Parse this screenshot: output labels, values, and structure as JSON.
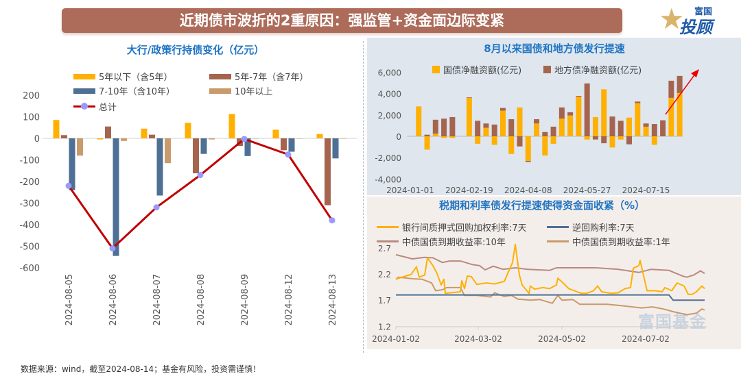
{
  "header": {
    "title": "近期债市波折的2重原因：强监管+资金面边际变紧",
    "logo_text": "富国星投顾",
    "logo_top": "富国",
    "logo_bottom": "投顾"
  },
  "watermark": "富国基金",
  "footer": "数据来源：wind，截至2024-08-14；基金有风险，投资需谨慎！",
  "colors": {
    "orange": "#ffb000",
    "brown": "#a5644e",
    "blue": "#4e7094",
    "tan": "#c89a6c",
    "total": "#c00000",
    "marker": "#9999ff",
    "pink": "#b88a80",
    "title": "#1f74c4"
  },
  "chart_data": [
    {
      "type": "bar",
      "title": "大行/政策行持债变化（亿元）",
      "categories": [
        "2024-08-05",
        "2024-08-06",
        "2024-08-07",
        "2024-08-08",
        "2024-08-09",
        "2024-08-12",
        "2024-08-13"
      ],
      "ylim": [
        -600,
        200
      ],
      "yticks": [
        "200",
        "100",
        "0",
        "-100",
        "-200",
        "-300",
        "-400",
        "-500",
        "-600"
      ],
      "legend": "top",
      "series": [
        {
          "name": "5年以下（含5年）",
          "values": [
            85,
            -5,
            45,
            72,
            113,
            40,
            20
          ]
        },
        {
          "name": "5年-7年（含7年）",
          "values": [
            15,
            55,
            17,
            -162,
            -35,
            -55,
            -310
          ]
        },
        {
          "name": "7-10年（含10年）",
          "values": [
            -240,
            -545,
            -265,
            -72,
            -82,
            -62,
            -93
          ]
        },
        {
          "name": "10年以上",
          "values": [
            -80,
            -12,
            -115,
            -5,
            0,
            0,
            0
          ]
        },
        {
          "name": "总计",
          "type": "line",
          "values": [
            -220,
            -510,
            -320,
            -170,
            -3,
            -75,
            -380
          ]
        }
      ]
    },
    {
      "type": "bar",
      "stacked": true,
      "title": "8月以来国债和地方债发行提速",
      "legend": "top",
      "ylim": [
        -4000,
        6000
      ],
      "yticks": [
        "6,000",
        "4,000",
        "2,000",
        "0",
        "-2,000",
        "-4,000"
      ],
      "xticks": [
        "2024-01-01",
        "2024-02-19",
        "2024-04-08",
        "2024-05-27",
        "2024-07-15"
      ],
      "categories": [
        "2024-01-01",
        "2024-01-08",
        "2024-01-15",
        "2024-01-22",
        "2024-01-29",
        "2024-02-05",
        "2024-02-12",
        "2024-02-19",
        "2024-02-26",
        "2024-03-04",
        "2024-03-11",
        "2024-03-18",
        "2024-03-25",
        "2024-04-01",
        "2024-04-08",
        "2024-04-15",
        "2024-04-22",
        "2024-04-29",
        "2024-05-06",
        "2024-05-13",
        "2024-05-20",
        "2024-05-27",
        "2024-06-03",
        "2024-06-10",
        "2024-06-17",
        "2024-06-24",
        "2024-07-01",
        "2024-07-08",
        "2024-07-15",
        "2024-07-22",
        "2024-07-29",
        "2024-08-05",
        "2024-08-12"
      ],
      "series": [
        {
          "name": "国债净融资额(亿元)",
          "values": [
            0,
            2800,
            -1250,
            250,
            -150,
            -150,
            0,
            3600,
            -700,
            800,
            -800,
            2400,
            -1650,
            2700,
            -2300,
            1200,
            -1800,
            -700,
            1650,
            1950,
            3700,
            -300,
            1800,
            4400,
            -1050,
            -300,
            1750,
            3100,
            900,
            -800,
            0,
            3600,
            4050
          ]
        },
        {
          "name": "地方债净融资额(亿元)",
          "values": [
            0,
            0,
            150,
            1300,
            1650,
            1800,
            0,
            50,
            1450,
            400,
            1100,
            250,
            1600,
            -950,
            -100,
            400,
            400,
            900,
            1050,
            300,
            80,
            4950,
            -300,
            -650,
            1850,
            1450,
            -750,
            150,
            300,
            1150,
            1500,
            1600,
            1600
          ]
        }
      ]
    },
    {
      "type": "line",
      "title": "税期和利率债发行提速使得资金面收紧（%）",
      "legend": "top",
      "ylim": [
        1.2,
        2.7
      ],
      "yticks": [
        "2.7",
        "2.2",
        "1.7",
        "1.2"
      ],
      "xticks": [
        "2024-01-02",
        "2024-03-02",
        "2024-05-02",
        "2024-07-02"
      ],
      "series": [
        {
          "name": "银行间质押式回购加权利率:7天",
          "points": [
            [
              "2024-01-02",
              2.1
            ],
            [
              "2024-01-09",
              2.16
            ],
            [
              "2024-01-13",
              2.19
            ],
            [
              "2024-01-17",
              2.34
            ],
            [
              "2024-01-19",
              2.14
            ],
            [
              "2024-01-23",
              2.18
            ],
            [
              "2024-01-25",
              2.51
            ],
            [
              "2024-01-29",
              2.36
            ],
            [
              "2024-02-01",
              2.21
            ],
            [
              "2024-02-04",
              1.99
            ],
            [
              "2024-02-06",
              2.1
            ],
            [
              "2024-02-07",
              1.83
            ],
            [
              "2024-02-18",
              1.86
            ],
            [
              "2024-02-19",
              2.07
            ],
            [
              "2024-02-21",
              1.92
            ],
            [
              "2024-02-23",
              2.16
            ],
            [
              "2024-02-26",
              2.15
            ],
            [
              "2024-03-01",
              2.0
            ],
            [
              "2024-03-08",
              2.03
            ],
            [
              "2024-03-14",
              2.01
            ],
            [
              "2024-03-21",
              2.06
            ],
            [
              "2024-03-27",
              2.42
            ],
            [
              "2024-03-29",
              2.77
            ],
            [
              "2024-04-01",
              2.18
            ],
            [
              "2024-04-03",
              1.99
            ],
            [
              "2024-04-08",
              1.83
            ],
            [
              "2024-04-09",
              1.97
            ],
            [
              "2024-04-12",
              1.91
            ],
            [
              "2024-04-18",
              1.94
            ],
            [
              "2024-04-23",
              1.92
            ],
            [
              "2024-04-28",
              1.99
            ],
            [
              "2024-04-29",
              2.12
            ],
            [
              "2024-05-02",
              2.05
            ],
            [
              "2024-05-07",
              1.92
            ],
            [
              "2024-05-11",
              1.88
            ],
            [
              "2024-05-16",
              1.83
            ],
            [
              "2024-05-20",
              1.83
            ],
            [
              "2024-05-25",
              1.88
            ],
            [
              "2024-05-28",
              1.97
            ],
            [
              "2024-05-31",
              1.86
            ],
            [
              "2024-06-07",
              1.83
            ],
            [
              "2024-06-12",
              1.84
            ],
            [
              "2024-06-17",
              1.92
            ],
            [
              "2024-06-21",
              1.94
            ],
            [
              "2024-06-23",
              2.31
            ],
            [
              "2024-06-27",
              2.36
            ],
            [
              "2024-06-28",
              2.46
            ],
            [
              "2024-06-30",
              2.23
            ],
            [
              "2024-07-03",
              1.88
            ],
            [
              "2024-07-09",
              1.88
            ],
            [
              "2024-07-14",
              1.86
            ],
            [
              "2024-07-16",
              1.94
            ],
            [
              "2024-07-21",
              1.88
            ],
            [
              "2024-07-25",
              2.03
            ],
            [
              "2024-07-30",
              1.97
            ],
            [
              "2024-08-02",
              1.81
            ],
            [
              "2024-08-05",
              1.81
            ],
            [
              "2024-08-08",
              1.86
            ],
            [
              "2024-08-12",
              1.97
            ],
            [
              "2024-08-14",
              1.92
            ]
          ]
        },
        {
          "name": "逆回购利率:7天",
          "points": [
            [
              "2024-01-02",
              1.8
            ],
            [
              "2024-07-19",
              1.8
            ],
            [
              "2024-07-22",
              1.7
            ],
            [
              "2024-08-14",
              1.7
            ]
          ]
        },
        {
          "name": "中债国债到期收益率:10年",
          "points": [
            [
              "2024-01-02",
              2.57
            ],
            [
              "2024-01-14",
              2.49
            ],
            [
              "2024-01-23",
              2.52
            ],
            [
              "2024-01-29",
              2.51
            ],
            [
              "2024-02-05",
              2.42
            ],
            [
              "2024-02-10",
              2.45
            ],
            [
              "2024-02-18",
              2.45
            ],
            [
              "2024-02-27",
              2.38
            ],
            [
              "2024-03-03",
              2.36
            ],
            [
              "2024-03-07",
              2.28
            ],
            [
              "2024-03-13",
              2.35
            ],
            [
              "2024-03-20",
              2.29
            ],
            [
              "2024-03-29",
              2.32
            ],
            [
              "2024-04-07",
              2.29
            ],
            [
              "2024-04-23",
              2.27
            ],
            [
              "2024-04-28",
              2.32
            ],
            [
              "2024-05-10",
              2.32
            ],
            [
              "2024-05-27",
              2.32
            ],
            [
              "2024-06-12",
              2.29
            ],
            [
              "2024-06-27",
              2.23
            ],
            [
              "2024-07-06",
              2.29
            ],
            [
              "2024-07-19",
              2.27
            ],
            [
              "2024-07-29",
              2.16
            ],
            [
              "2024-08-01",
              2.14
            ],
            [
              "2024-08-06",
              2.18
            ],
            [
              "2024-08-11",
              2.26
            ],
            [
              "2024-08-14",
              2.21
            ]
          ]
        },
        {
          "name": "中债国债到期收益率:1年",
          "points": [
            [
              "2024-01-02",
              2.1
            ],
            [
              "2024-01-04",
              2.14
            ],
            [
              "2024-01-14",
              2.11
            ],
            [
              "2024-01-21",
              2.1
            ],
            [
              "2024-01-28",
              2.03
            ],
            [
              "2024-01-31",
              1.88
            ],
            [
              "2024-02-05",
              1.9
            ],
            [
              "2024-02-08",
              1.94
            ],
            [
              "2024-02-18",
              1.94
            ],
            [
              "2024-02-21",
              1.79
            ],
            [
              "2024-03-01",
              1.79
            ],
            [
              "2024-03-11",
              1.76
            ],
            [
              "2024-03-14",
              1.84
            ],
            [
              "2024-03-21",
              1.77
            ],
            [
              "2024-03-26",
              1.79
            ],
            [
              "2024-03-31",
              1.72
            ],
            [
              "2024-04-09",
              1.7
            ],
            [
              "2024-04-16",
              1.71
            ],
            [
              "2024-04-25",
              1.64
            ],
            [
              "2024-04-29",
              1.79
            ],
            [
              "2024-05-02",
              1.7
            ],
            [
              "2024-05-10",
              1.71
            ],
            [
              "2024-05-15",
              1.62
            ],
            [
              "2024-05-27",
              1.62
            ],
            [
              "2024-06-04",
              1.62
            ],
            [
              "2024-06-16",
              1.59
            ],
            [
              "2024-06-29",
              1.55
            ],
            [
              "2024-07-07",
              1.57
            ],
            [
              "2024-07-15",
              1.53
            ],
            [
              "2024-07-22",
              1.48
            ],
            [
              "2024-08-01",
              1.42
            ],
            [
              "2024-08-08",
              1.45
            ],
            [
              "2024-08-12",
              1.53
            ],
            [
              "2024-08-14",
              1.51
            ]
          ]
        }
      ]
    }
  ]
}
